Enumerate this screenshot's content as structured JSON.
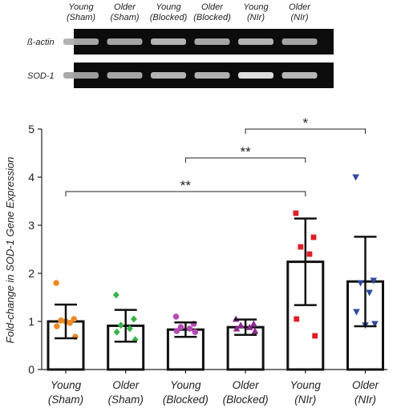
{
  "blot": {
    "lanes": [
      {
        "line1": "Young",
        "line2": "(Sham)"
      },
      {
        "line1": "Older",
        "line2": "(Sham)"
      },
      {
        "line1": "Young",
        "line2": "(Blocked)"
      },
      {
        "line1": "Older",
        "line2": "(Blocked)"
      },
      {
        "line1": "Young",
        "line2": "(NIr)"
      },
      {
        "line1": "Older",
        "line2": "(NIr)"
      }
    ],
    "rows": [
      {
        "label": "ß-actin",
        "intensity": [
          0.62,
          0.6,
          0.7,
          0.62,
          0.7,
          0.6
        ]
      },
      {
        "label": "SOD-1",
        "intensity": [
          0.55,
          0.62,
          0.7,
          0.68,
          0.95,
          0.72
        ]
      }
    ]
  },
  "chart_data": {
    "type": "bar",
    "categories": [
      {
        "line1": "Young",
        "line2": "(Sham)"
      },
      {
        "line1": "Older",
        "line2": "(Sham)"
      },
      {
        "line1": "Young",
        "line2": "(Blocked)"
      },
      {
        "line1": "Older",
        "line2": "(Blocked)"
      },
      {
        "line1": "Young",
        "line2": "(NIr)"
      },
      {
        "line1": "Older",
        "line2": "(NIr)"
      }
    ],
    "ylabel": "Fold-change in SOD-1 Gene Expression",
    "ylim": [
      0,
      5
    ],
    "yticks": [
      "0",
      "1",
      "2",
      "3",
      "4",
      "5"
    ],
    "values": [
      1.0,
      0.91,
      0.83,
      0.88,
      2.24,
      1.83
    ],
    "error": [
      0.35,
      0.33,
      0.15,
      0.16,
      0.9,
      0.93
    ],
    "points": [
      [
        1.8,
        1.05,
        1.02,
        0.97,
        0.9,
        0.68,
        1.0
      ],
      [
        1.55,
        1.05,
        0.92,
        0.85,
        0.78,
        0.62
      ],
      [
        1.1,
        0.95,
        0.88,
        0.85,
        0.8,
        0.78
      ],
      [
        1.05,
        0.95,
        0.92,
        0.88,
        0.85,
        0.8
      ],
      [
        3.25,
        2.75,
        2.55,
        2.4,
        1.05,
        0.7
      ],
      [
        4.0,
        1.85,
        1.8,
        1.6,
        1.2,
        0.95,
        0.92
      ]
    ],
    "markers": [
      "circle",
      "diamond",
      "circle",
      "triangle",
      "square",
      "triangle-down"
    ],
    "colors": [
      "#f08a24",
      "#39b34a",
      "#b549b5",
      "#8e2a8e",
      "#e01f26",
      "#2f4aa0"
    ],
    "significance": [
      {
        "from": 3,
        "to": 5,
        "label": "*",
        "y": 5.0
      },
      {
        "from": 2,
        "to": 4,
        "label": "**",
        "y": 4.4
      },
      {
        "from": 0,
        "to": 4,
        "label": "**",
        "y": 3.7
      }
    ]
  }
}
